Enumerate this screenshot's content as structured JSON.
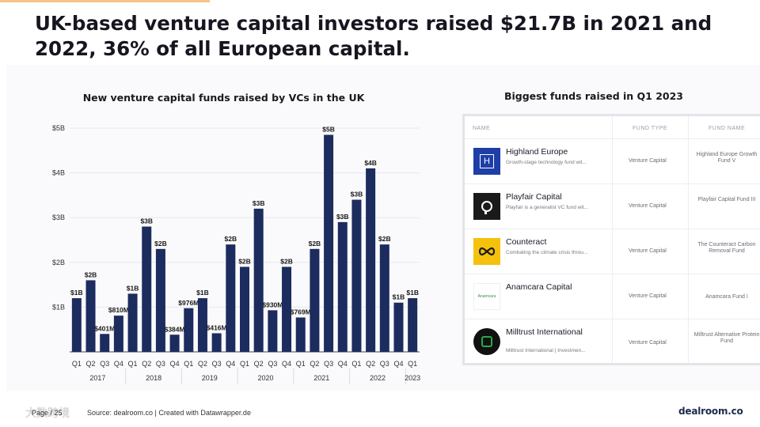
{
  "slide": {
    "title": "UK-based venture capital investors raised $21.7B in 2021 and 2022, 36% of all European capital."
  },
  "chart_data": {
    "type": "bar",
    "title": "New venture capital funds raised by VCs in the UK",
    "categories": [
      "Q1",
      "Q2",
      "Q3",
      "Q4",
      "Q1",
      "Q2",
      "Q3",
      "Q4",
      "Q1",
      "Q2",
      "Q3",
      "Q4",
      "Q1",
      "Q2",
      "Q3",
      "Q4",
      "Q1",
      "Q2",
      "Q3",
      "Q4",
      "Q1",
      "Q2",
      "Q3",
      "Q4",
      "Q1"
    ],
    "years": [
      "2017",
      "2018",
      "2019",
      "2020",
      "2021",
      "2022",
      "2023"
    ],
    "year_group_sizes": [
      4,
      4,
      4,
      4,
      4,
      4,
      1
    ],
    "values": [
      1.2,
      1.6,
      0.401,
      0.81,
      1.3,
      2.8,
      2.3,
      0.384,
      0.976,
      1.2,
      0.416,
      2.4,
      1.9,
      3.2,
      0.93,
      1.9,
      0.769,
      2.3,
      4.85,
      2.9,
      3.4,
      4.1,
      2.4,
      1.1,
      1.2
    ],
    "value_labels": [
      "$1B",
      "$2B",
      "$401M",
      "$810M",
      "$1B",
      "$3B",
      "$2B",
      "$384M",
      "$976M",
      "$1B",
      "$416M",
      "$2B",
      "$2B",
      "$3B",
      "$930M",
      "$2B",
      "$769M",
      "$2B",
      "$5B",
      "$3B",
      "$3B",
      "$4B",
      "$2B",
      "$1B",
      "$1B"
    ],
    "y_ticks": [
      "$1B",
      "$2B",
      "$3B",
      "$4B",
      "$5B"
    ],
    "y_tick_values": [
      1,
      2,
      3,
      4,
      5
    ],
    "ylim": [
      0,
      5.1
    ],
    "bar_color": "#1c2c5e",
    "grid": true,
    "grid_color": "#e6e8ee"
  },
  "funds_panel": {
    "title": "Biggest funds raised in Q1 2023",
    "headers": {
      "name": "NAME",
      "type": "FUND TYPE",
      "fund_name": "FUND NAME"
    },
    "rows": [
      {
        "name": "Highland Europe",
        "desc": "Growth-stage technology fund wit...",
        "type": "Venture Capital",
        "fund_name": "Highland Europe Growth Fund V",
        "logo_icon": "highland-europe-logo",
        "logo_text": "H",
        "logo_bg": "#1e3ea8",
        "logo_fg": "#ffffff"
      },
      {
        "name": "Playfair Capital",
        "desc": "Playfair is a generalist VC fund wit...",
        "type": "Venture Capital",
        "fund_name": "Playfair Capital Fund III",
        "logo_icon": "playfair-logo",
        "logo_text": "",
        "logo_bg": "#1a1a1a",
        "logo_fg": "#ffffff"
      },
      {
        "name": "Counteract",
        "desc": "Combating the climate crisis throu...",
        "type": "Venture Capital",
        "fund_name": "The Counteract Carbon Removal Fund",
        "logo_icon": "counteract-logo",
        "logo_text": "",
        "logo_bg": "#f4c20d",
        "logo_fg": "#1a1a1a"
      },
      {
        "name": "Anamcara Capital",
        "desc": "",
        "type": "Venture Capital",
        "fund_name": "Anamcara Fund I",
        "logo_icon": "anamcara-logo",
        "logo_text": "Anamcara",
        "logo_bg": "#ffffff",
        "logo_fg": "#3a8a5a"
      },
      {
        "name": "Milltrust International",
        "desc": "Milltrust International | Investmen...",
        "type": "Venture Capital",
        "fund_name": "Milltrust Alternative Protein Fund",
        "logo_icon": "milltrust-logo",
        "logo_text": "",
        "logo_bg": "#111111",
        "logo_fg": "#2aa84a"
      }
    ]
  },
  "footer": {
    "page": "Page / 25",
    "source": "Source: dealroom.co | Created with Datawrapper.de",
    "brand": "dealroom.co",
    "watermark": "大数跨境"
  }
}
